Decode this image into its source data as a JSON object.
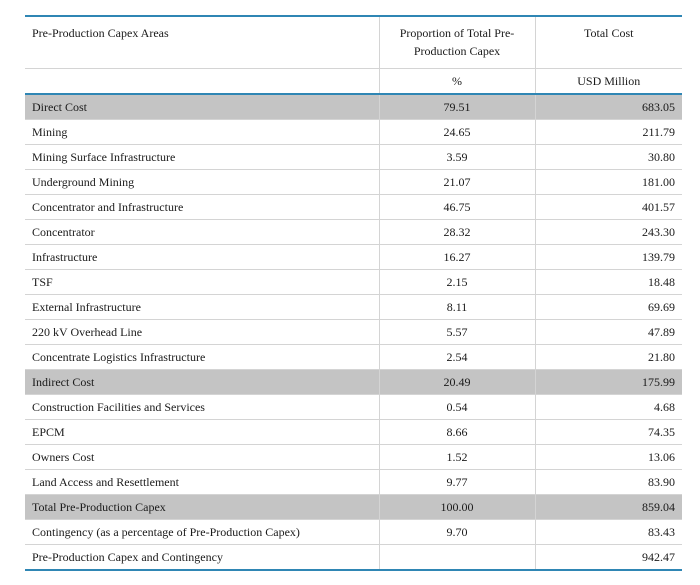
{
  "header": {
    "col1": "Pre-Production Capex Areas",
    "col2": "Proportion of Total Pre-Production Capex",
    "col3": "Total Cost",
    "unit2": "%",
    "unit3": "USD Million"
  },
  "rows": [
    {
      "label": "Direct Cost",
      "pct": "79.51",
      "cost": "683.05",
      "shaded": true
    },
    {
      "label": "Mining",
      "pct": "24.65",
      "cost": "211.79",
      "shaded": false
    },
    {
      "label": "Mining Surface Infrastructure",
      "pct": "3.59",
      "cost": "30.80",
      "shaded": false
    },
    {
      "label": "Underground Mining",
      "pct": "21.07",
      "cost": "181.00",
      "shaded": false
    },
    {
      "label": "Concentrator and Infrastructure",
      "pct": "46.75",
      "cost": "401.57",
      "shaded": false
    },
    {
      "label": "Concentrator",
      "pct": "28.32",
      "cost": "243.30",
      "shaded": false
    },
    {
      "label": "Infrastructure",
      "pct": "16.27",
      "cost": "139.79",
      "shaded": false
    },
    {
      "label": "TSF",
      "pct": "2.15",
      "cost": "18.48",
      "shaded": false
    },
    {
      "label": "External Infrastructure",
      "pct": "8.11",
      "cost": "69.69",
      "shaded": false
    },
    {
      "label": "220 kV Overhead Line",
      "pct": "5.57",
      "cost": "47.89",
      "shaded": false
    },
    {
      "label": "Concentrate Logistics Infrastructure",
      "pct": "2.54",
      "cost": "21.80",
      "shaded": false
    },
    {
      "label": "Indirect Cost",
      "pct": "20.49",
      "cost": "175.99",
      "shaded": true
    },
    {
      "label": "Construction Facilities and Services",
      "pct": "0.54",
      "cost": "4.68",
      "shaded": false
    },
    {
      "label": "EPCM",
      "pct": "8.66",
      "cost": "74.35",
      "shaded": false
    },
    {
      "label": "Owners Cost",
      "pct": "1.52",
      "cost": "13.06",
      "shaded": false
    },
    {
      "label": "Land Access and Resettlement",
      "pct": "9.77",
      "cost": "83.90",
      "shaded": false
    },
    {
      "label": "Total Pre-Production Capex",
      "pct": "100.00",
      "cost": "859.04",
      "shaded": true
    },
    {
      "label": "Contingency (as a percentage of Pre-Production Capex)",
      "pct": "9.70",
      "cost": "83.43",
      "shaded": false
    },
    {
      "label": "Pre-Production Capex and Contingency",
      "pct": "",
      "cost": "942.47",
      "shaded": false
    }
  ]
}
